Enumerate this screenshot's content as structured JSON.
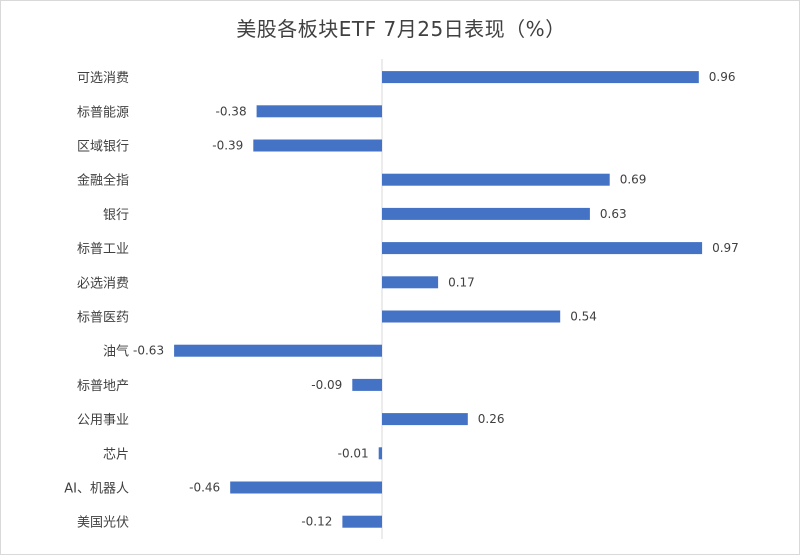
{
  "chart_data": {
    "type": "bar",
    "orientation": "horizontal",
    "title": "美股各板块ETF  7月25日表现（%）",
    "categories": [
      "可选消费",
      "标普能源",
      "区域银行",
      "金融全指",
      "银行",
      "标普工业",
      "必选消费",
      "标普医药",
      "油气",
      "标普地产",
      "公用事业",
      "芯片",
      "AI、机器人",
      "美国光伏"
    ],
    "values": [
      0.96,
      -0.38,
      -0.39,
      0.69,
      0.63,
      0.97,
      0.17,
      0.54,
      -0.63,
      -0.09,
      0.26,
      -0.01,
      -0.46,
      -0.12
    ],
    "value_labels": [
      "0.96",
      "-0.38",
      "-0.39",
      "0.69",
      "0.63",
      "0.97",
      "0.17",
      "0.54",
      "-0.63",
      "-0.09",
      "0.26",
      "-0.01",
      "-0.46",
      "-0.12"
    ],
    "xlim": [
      -0.65,
      1.0
    ],
    "bar_color": "#4472c4",
    "grid": false,
    "legend": "none"
  }
}
